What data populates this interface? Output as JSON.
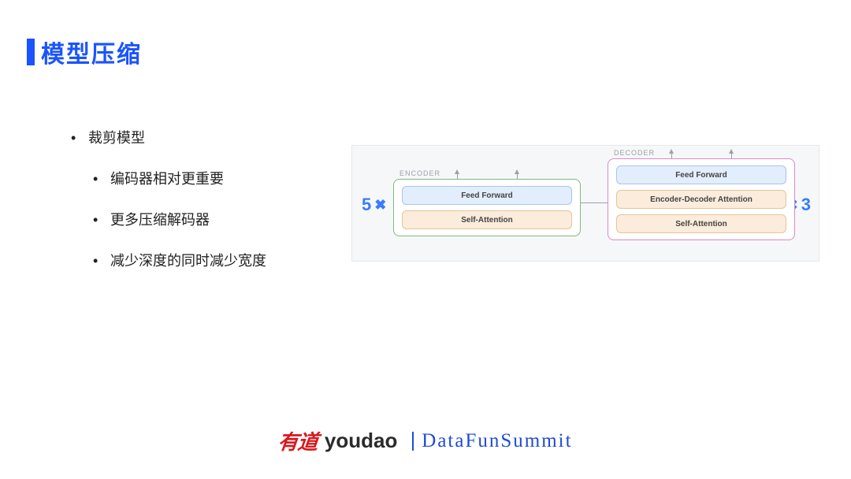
{
  "title": "模型压缩",
  "bullets": {
    "main": "裁剪模型",
    "subs": [
      "编码器相对更重要",
      "更多压缩解码器",
      "减少深度的同时减少宽度"
    ]
  },
  "diagram": {
    "type": "flowchart",
    "background_color": "#f6f7f9",
    "border_color": "#e6e8ec",
    "multiplier_color": "#387cff",
    "multiplier_left": "5",
    "multiplier_right": "3",
    "multiplier_symbol": "✖",
    "encoder": {
      "label": "ENCODER",
      "border_color": "#7fba7f",
      "blocks": [
        {
          "text": "Feed Forward",
          "bg": "#e3eefc",
          "border": "#a8c4ea"
        },
        {
          "text": "Self-Attention",
          "bg": "#fbecdb",
          "border": "#e6c49a"
        }
      ]
    },
    "decoder": {
      "label": "DECODER",
      "border_color": "#d98cc4",
      "blocks": [
        {
          "text": "Feed Forward",
          "bg": "#e3eefc",
          "border": "#a8c4ea"
        },
        {
          "text": "Encoder-Decoder Attention",
          "bg": "#fbecdb",
          "border": "#e6c49a"
        },
        {
          "text": "Self-Attention",
          "bg": "#fbecdb",
          "border": "#e6c49a"
        }
      ]
    }
  },
  "footer": {
    "brand_cn": "有道",
    "brand_en": "youdao",
    "conference": "DataFunSummit"
  }
}
